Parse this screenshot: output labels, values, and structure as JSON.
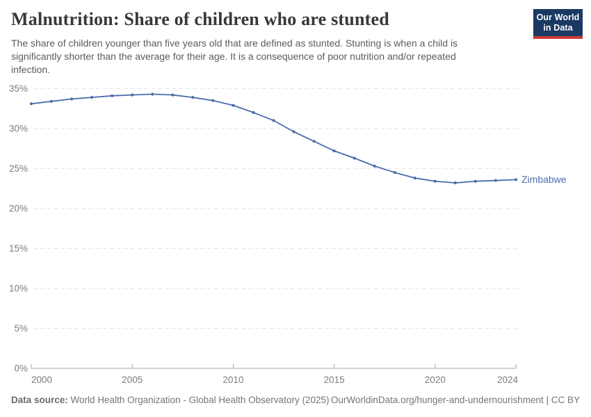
{
  "header": {
    "title": "Malnutrition: Share of children who are stunted",
    "subtitle_lines": [
      "The share of children younger than five years old that are defined as stunted. Stunting is when a child is",
      "significantly shorter than the average for their age. It is a consequence of poor nutrition and/or repeated",
      "infection."
    ],
    "logo": {
      "line1": "Our World",
      "line2": "in Data",
      "bg_color": "#1a3a63",
      "accent_color": "#cf3c33"
    }
  },
  "chart_data": {
    "type": "line",
    "title": "Malnutrition: Share of children who are stunted",
    "xlabel": "",
    "ylabel": "",
    "xlim": [
      2000,
      2024
    ],
    "ylim": [
      0,
      35
    ],
    "x_ticks": [
      2000,
      2005,
      2010,
      2015,
      2020,
      2024
    ],
    "y_ticks": [
      0,
      5,
      10,
      15,
      20,
      25,
      30,
      35
    ],
    "y_tick_suffix": "%",
    "grid": "horizontal-dashed",
    "legend_position": "end-of-line-label",
    "grid_color": "#e2e2e2",
    "axis_color": "#a5a5a5",
    "x": [
      2000,
      2001,
      2002,
      2003,
      2004,
      2005,
      2006,
      2007,
      2008,
      2009,
      2010,
      2011,
      2012,
      2013,
      2014,
      2015,
      2016,
      2017,
      2018,
      2019,
      2020,
      2021,
      2022,
      2023,
      2024
    ],
    "series": [
      {
        "name": "Zimbabwe",
        "color": "#4b6dac",
        "values": [
          33.1,
          33.4,
          33.7,
          33.9,
          34.1,
          34.2,
          34.3,
          34.2,
          33.9,
          33.5,
          32.9,
          32.0,
          31.0,
          29.6,
          28.4,
          27.2,
          26.3,
          25.3,
          24.5,
          23.8,
          23.4,
          23.2,
          23.4,
          23.5,
          23.6
        ]
      }
    ]
  },
  "footer": {
    "datasource_label": "Data source:",
    "datasource_value": "World Health Organization - Global Health Observatory (2025)",
    "credit": "OurWorldinData.org/hunger-and-undernourishment | CC BY"
  }
}
